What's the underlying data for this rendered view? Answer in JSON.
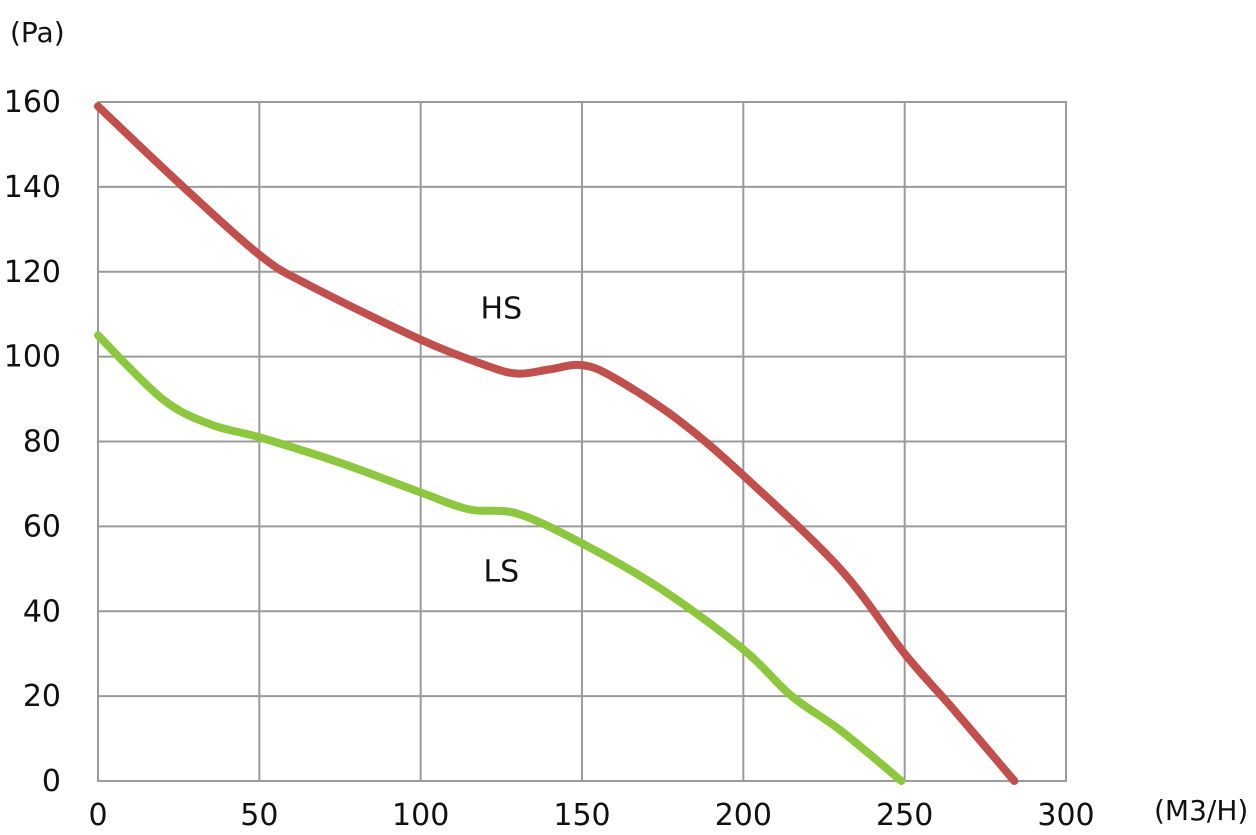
{
  "chart_data": {
    "type": "line",
    "title": "",
    "xlabel": "(M3/H)",
    "ylabel": "(Pa)",
    "xlim": [
      0,
      300
    ],
    "ylim": [
      0,
      160
    ],
    "x_ticks": [
      0,
      50,
      100,
      150,
      200,
      250,
      300
    ],
    "y_ticks": [
      0,
      20,
      40,
      60,
      80,
      100,
      120,
      140,
      160
    ],
    "grid": true,
    "legend": "none",
    "series": [
      {
        "name": "HS",
        "color": "#c0504d",
        "points": [
          [
            0,
            159
          ],
          [
            25,
            141
          ],
          [
            50,
            124
          ],
          [
            65,
            117
          ],
          [
            100,
            104
          ],
          [
            120,
            98
          ],
          [
            130,
            96
          ],
          [
            140,
            97
          ],
          [
            150,
            98
          ],
          [
            160,
            95
          ],
          [
            180,
            85
          ],
          [
            200,
            72
          ],
          [
            230,
            50
          ],
          [
            250,
            30
          ],
          [
            265,
            17
          ],
          [
            284,
            0
          ]
        ]
      },
      {
        "name": "LS",
        "color": "#8dc63f",
        "points": [
          [
            0,
            105
          ],
          [
            20,
            90
          ],
          [
            35,
            84
          ],
          [
            50,
            81
          ],
          [
            75,
            75
          ],
          [
            100,
            68
          ],
          [
            115,
            64
          ],
          [
            130,
            63
          ],
          [
            150,
            56
          ],
          [
            175,
            45
          ],
          [
            200,
            31
          ],
          [
            215,
            20
          ],
          [
            230,
            12
          ],
          [
            249,
            0
          ]
        ]
      }
    ],
    "annotations": [
      {
        "text": "HS",
        "x": 125,
        "y": 109
      },
      {
        "text": "LS",
        "x": 125,
        "y": 47
      }
    ]
  }
}
